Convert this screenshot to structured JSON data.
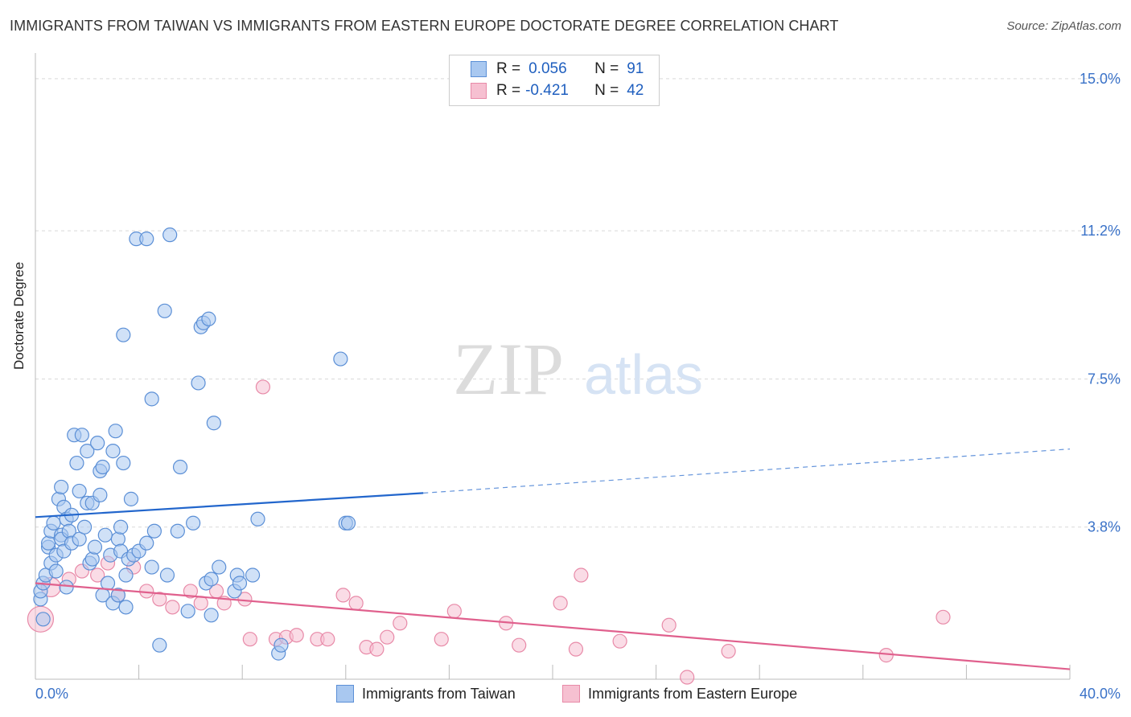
{
  "header": {
    "title": "IMMIGRANTS FROM TAIWAN VS IMMIGRANTS FROM EASTERN EUROPE DOCTORATE DEGREE CORRELATION CHART",
    "source": "Source: ZipAtlas.com"
  },
  "watermark": {
    "zip": "ZIP",
    "atlas": "atlas"
  },
  "legend": {
    "r_label": "R =",
    "n_label": "N =",
    "series1": {
      "r": "0.056",
      "n": "91"
    },
    "series2": {
      "r": "-0.421",
      "n": "42"
    }
  },
  "colors": {
    "taiwan_fill": "#a9c8f0",
    "taiwan_stroke": "#5b8fd6",
    "taiwan_line": "#2266cc",
    "europe_fill": "#f6c0d1",
    "europe_stroke": "#e88aa8",
    "europe_line": "#e0608d",
    "axis_label": "#3a72c8"
  },
  "chart_data": {
    "type": "scatter",
    "title": "IMMIGRANTS FROM TAIWAN VS IMMIGRANTS FROM EASTERN EUROPE DOCTORATE DEGREE CORRELATION CHART",
    "xlabel": "",
    "ylabel": "Doctorate Degree",
    "xlim": [
      0,
      40
    ],
    "ylim": [
      0,
      15.4
    ],
    "x_tick_labels": [
      "0.0%",
      "40.0%"
    ],
    "y_ticks": [
      3.8,
      7.5,
      11.2,
      15.0
    ],
    "y_tick_labels": [
      "3.8%",
      "7.5%",
      "11.2%",
      "15.0%"
    ],
    "grid": true,
    "series": [
      {
        "name": "Immigrants from Taiwan",
        "r": 0.056,
        "n": 91,
        "trend": {
          "x_start": 0,
          "y_start": 4.05,
          "x_solid_end": 15,
          "y_solid_end": 4.65,
          "x_end": 40,
          "y_end": 5.75
        },
        "points": [
          [
            0.2,
            2.0
          ],
          [
            0.2,
            2.2
          ],
          [
            0.3,
            2.4
          ],
          [
            0.4,
            2.6
          ],
          [
            0.5,
            3.3
          ],
          [
            0.5,
            3.4
          ],
          [
            0.6,
            2.9
          ],
          [
            0.6,
            3.7
          ],
          [
            0.7,
            3.9
          ],
          [
            0.8,
            2.7
          ],
          [
            0.8,
            3.1
          ],
          [
            0.9,
            4.5
          ],
          [
            1.0,
            3.6
          ],
          [
            1.0,
            3.5
          ],
          [
            1.0,
            4.8
          ],
          [
            1.1,
            4.3
          ],
          [
            1.1,
            3.2
          ],
          [
            1.2,
            4.0
          ],
          [
            1.2,
            2.3
          ],
          [
            1.3,
            3.7
          ],
          [
            1.4,
            3.4
          ],
          [
            1.4,
            4.1
          ],
          [
            1.5,
            6.1
          ],
          [
            1.6,
            5.4
          ],
          [
            1.7,
            4.7
          ],
          [
            1.7,
            3.5
          ],
          [
            1.8,
            6.1
          ],
          [
            1.9,
            3.8
          ],
          [
            2.0,
            4.4
          ],
          [
            2.0,
            5.7
          ],
          [
            2.1,
            2.9
          ],
          [
            2.2,
            4.4
          ],
          [
            2.2,
            3.0
          ],
          [
            2.3,
            3.3
          ],
          [
            2.4,
            5.9
          ],
          [
            2.5,
            5.2
          ],
          [
            2.5,
            4.6
          ],
          [
            2.6,
            2.1
          ],
          [
            2.6,
            5.3
          ],
          [
            2.7,
            3.6
          ],
          [
            2.8,
            2.4
          ],
          [
            2.9,
            3.1
          ],
          [
            3.0,
            5.7
          ],
          [
            3.0,
            1.9
          ],
          [
            3.1,
            6.2
          ],
          [
            3.2,
            2.1
          ],
          [
            3.2,
            3.5
          ],
          [
            3.3,
            3.8
          ],
          [
            3.3,
            3.2
          ],
          [
            3.4,
            5.4
          ],
          [
            3.4,
            8.6
          ],
          [
            3.5,
            1.8
          ],
          [
            3.6,
            3.0
          ],
          [
            3.5,
            2.6
          ],
          [
            3.7,
            4.5
          ],
          [
            3.8,
            3.1
          ],
          [
            3.9,
            11.0
          ],
          [
            4.0,
            3.2
          ],
          [
            4.3,
            11.0
          ],
          [
            4.3,
            3.4
          ],
          [
            4.5,
            7.0
          ],
          [
            4.5,
            2.8
          ],
          [
            4.6,
            3.7
          ],
          [
            4.8,
            0.85
          ],
          [
            5.0,
            9.2
          ],
          [
            5.1,
            2.6
          ],
          [
            5.2,
            11.1
          ],
          [
            5.5,
            3.7
          ],
          [
            5.6,
            5.3
          ],
          [
            5.9,
            1.7
          ],
          [
            6.1,
            3.9
          ],
          [
            6.3,
            7.4
          ],
          [
            6.4,
            8.8
          ],
          [
            6.5,
            8.9
          ],
          [
            6.6,
            2.4
          ],
          [
            6.7,
            9.0
          ],
          [
            6.8,
            1.6
          ],
          [
            6.8,
            2.5
          ],
          [
            6.9,
            6.4
          ],
          [
            7.1,
            2.8
          ],
          [
            7.7,
            2.2
          ],
          [
            7.8,
            2.6
          ],
          [
            7.9,
            2.4
          ],
          [
            8.4,
            2.6
          ],
          [
            8.6,
            4.0
          ],
          [
            9.4,
            0.65
          ],
          [
            9.5,
            0.85
          ],
          [
            11.8,
            8.0
          ],
          [
            12.0,
            3.9
          ],
          [
            12.1,
            3.9
          ],
          [
            0.3,
            1.5
          ]
        ]
      },
      {
        "name": "Immigrants from Eastern Europe",
        "r": -0.421,
        "n": 42,
        "trend": {
          "x_start": 0,
          "y_start": 2.4,
          "x_end": 40,
          "y_end": 0.25
        },
        "points": [
          [
            0.2,
            1.5
          ],
          [
            0.6,
            2.3
          ],
          [
            1.3,
            2.5
          ],
          [
            1.8,
            2.7
          ],
          [
            2.4,
            2.6
          ],
          [
            2.8,
            2.9
          ],
          [
            3.2,
            2.1
          ],
          [
            3.8,
            2.8
          ],
          [
            4.3,
            2.2
          ],
          [
            4.8,
            2.0
          ],
          [
            5.3,
            1.8
          ],
          [
            6.0,
            2.2
          ],
          [
            6.4,
            1.9
          ],
          [
            7.0,
            2.2
          ],
          [
            7.3,
            1.9
          ],
          [
            8.1,
            2.0
          ],
          [
            8.3,
            1.0
          ],
          [
            8.8,
            7.3
          ],
          [
            9.3,
            1.0
          ],
          [
            9.7,
            1.05
          ],
          [
            10.1,
            1.1
          ],
          [
            10.9,
            1.0
          ],
          [
            11.3,
            1.0
          ],
          [
            11.9,
            2.1
          ],
          [
            12.4,
            1.9
          ],
          [
            12.8,
            0.8
          ],
          [
            13.2,
            0.75
          ],
          [
            13.6,
            1.05
          ],
          [
            14.1,
            1.4
          ],
          [
            15.7,
            1.0
          ],
          [
            16.2,
            1.7
          ],
          [
            18.2,
            1.4
          ],
          [
            18.7,
            0.85
          ],
          [
            20.3,
            1.9
          ],
          [
            20.9,
            0.75
          ],
          [
            21.1,
            2.6
          ],
          [
            22.6,
            0.95
          ],
          [
            24.5,
            1.35
          ],
          [
            25.2,
            0.05
          ],
          [
            26.8,
            0.7
          ],
          [
            32.9,
            0.6
          ],
          [
            35.1,
            1.55
          ]
        ]
      }
    ]
  },
  "bottom_legend": {
    "item1": "Immigrants from Taiwan",
    "item2": "Immigrants from Eastern Europe"
  }
}
